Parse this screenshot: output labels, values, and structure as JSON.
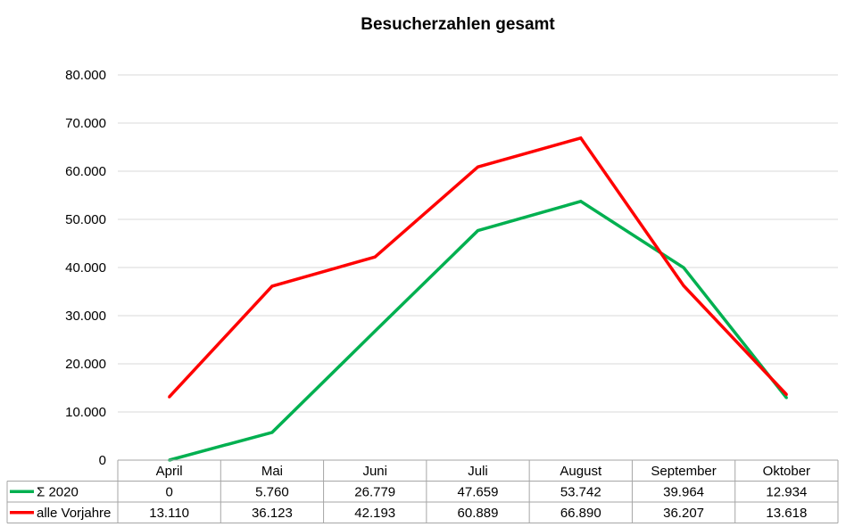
{
  "chart_data": {
    "type": "line",
    "title": "Besucherzahlen gesamt",
    "xlabel": "",
    "ylabel": "",
    "ylim": [
      0,
      80000
    ],
    "y_ticks": [
      "0",
      "10.000",
      "20.000",
      "30.000",
      "40.000",
      "50.000",
      "60.000",
      "70.000",
      "80.000"
    ],
    "y_tick_values": [
      0,
      10000,
      20000,
      30000,
      40000,
      50000,
      60000,
      70000,
      80000
    ],
    "grid": true,
    "legend": "data-table",
    "categories": [
      "April",
      "Mai",
      "Juni",
      "Juli",
      "August",
      "September",
      "Oktober"
    ],
    "series": [
      {
        "name": "Σ 2020",
        "color": "#00b050",
        "values": [
          0,
          5760,
          26779,
          47659,
          53742,
          39964,
          12934
        ],
        "labels": [
          "0",
          "5.760",
          "26.779",
          "47.659",
          "53.742",
          "39.964",
          "12.934"
        ]
      },
      {
        "name": "alle Vorjahre",
        "color": "#ff0000",
        "values": [
          13110,
          36123,
          42193,
          60889,
          66890,
          36207,
          13618
        ],
        "labels": [
          "13.110",
          "36.123",
          "42.193",
          "60.889",
          "66.890",
          "36.207",
          "13.618"
        ]
      }
    ]
  }
}
